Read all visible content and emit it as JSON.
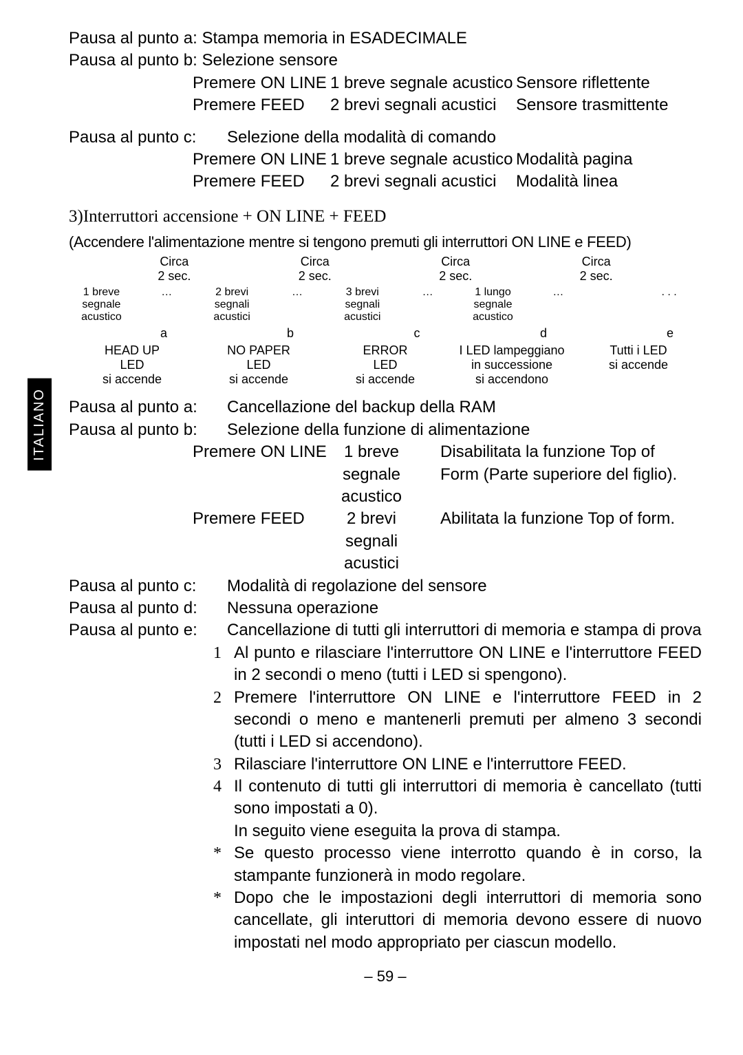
{
  "side_tab": "ITALIANO",
  "pausa_a1": "Pausa al punto a: Stampa memoria in ESADECIMALE",
  "pausa_b1": "Pausa al punto b: Selezione sensore",
  "row_b1_c1": "Premere ON LINE",
  "row_b1_c2": "1 breve segnale acustico",
  "row_b1_c3": "Sensore riflettente",
  "row_b2_c1": "Premere FEED",
  "row_b2_c2": "2 brevi segnali acustici",
  "row_b2_c3": "Sensore trasmittente",
  "pausa_c1_lbl": "Pausa al punto c:",
  "pausa_c1_txt": "Selezione della modalità di comando",
  "row_c1_c1": "Premere ON LINE",
  "row_c1_c2": "1 breve segnale acustico",
  "row_c1_c3": "Modalità pagina",
  "row_c2_c1": "Premere FEED",
  "row_c2_c2": "2 brevi segnali acustici",
  "row_c2_c3": "Modalità linea",
  "section3_title": "3)Interruttori accensione + ON LINE + FEED",
  "section3_sub": "(Accendere l'alimentazione mentre si tengono premuti gli interruttori ON LINE e FEED)",
  "circa": "Circa",
  "two_sec": "2 sec.",
  "sig1_l1": "1 breve segnale",
  "sig1_l2": "acustico",
  "sig2_l1": "2 brevi segnali",
  "sig2_l2": "acustici",
  "sig3_l1": "3 brevi segnali",
  "sig3_l2": "acustici",
  "sig4_l1": "1 lungo segnale",
  "sig4_l2": "acustico",
  "ellipsis": "…",
  "ellipsis_far": ". . .",
  "letter_a": "a",
  "letter_b": "b",
  "letter_c": "c",
  "letter_d": "d",
  "letter_e": "e",
  "led1_l1": "HEAD UP",
  "led1_l2": "LED",
  "led1_l3": "si accende",
  "led2_l1": "NO PAPER",
  "led2_l2": "LED",
  "led2_l3": "si accende",
  "led3_l1": "ERROR",
  "led3_l2": "LED",
  "led3_l3": "si accende",
  "led4_l1": "I LED lampeggiano",
  "led4_l2": "in successione",
  "led4_l3": "si accendono",
  "led5_l1": "Tutti i LED",
  "led5_l2": "si accende",
  "pausa_a2_lbl": "Pausa al punto a:",
  "pausa_a2_txt": "Cancellazione del backup della RAM",
  "pausa_b2_lbl": "Pausa al punto b:",
  "pausa_b2_txt": "Selezione della funzione di alimentazione",
  "feed_r1_c1": "Premere ON LINE",
  "feed_r1_c2a": "1 breve",
  "feed_r1_c2b": "segnale",
  "feed_r1_c2c": "acustico",
  "feed_r1_c3a": "Disabilitata la funzione Top of",
  "feed_r1_c3b": "Form (Parte superiore del figlio).",
  "feed_r2_c1": "Premere FEED",
  "feed_r2_c2a": "2 brevi",
  "feed_r2_c2b": "segnali",
  "feed_r2_c2c": "acustici",
  "feed_r2_c3": "Abilitata la funzione Top of form.",
  "pausa_c2_lbl": "Pausa al punto c:",
  "pausa_c2_txt": "Modalità di regolazione del sensore",
  "pausa_d_lbl": "Pausa al punto d:",
  "pausa_d_txt": "Nessuna operazione",
  "pausa_e_lbl": "Pausa al punto e:",
  "pausa_e_txt": "Cancellazione di tutti gli interruttori di memoria e stampa di prova",
  "step1_num": "1",
  "step1": "Al punto e rilasciare l'interruttore ON LINE e l'interruttore FEED in 2 secondi o meno (tutti i LED si spengono).",
  "step2_num": "2",
  "step2": "Premere l'interruttore ON LINE e l'interruttore FEED in 2 secondi o meno e mantenerli premuti per almeno 3 secondi (tutti i LED si accendono).",
  "step3_num": "3",
  "step3": "Rilasciare l'interruttore ON LINE e l'interruttore FEED.",
  "step4_num": "4",
  "step4a": "Il contenuto di tutti gli interruttori di memoria è cancellato (tutti sono impostati a 0).",
  "step4b": "In seguito viene eseguita la prova di stampa.",
  "star": "*",
  "note1": "Se questo processo viene interrotto quando è in corso, la stampante funzionerà in modo regolare.",
  "note2": "Dopo che le impostazioni degli interruttori di memoria sono cancellate, gli interuttori di memoria devono essere di nuovo impostati nel modo appropriato per ciascun modello.",
  "pagenum": "– 59 –"
}
